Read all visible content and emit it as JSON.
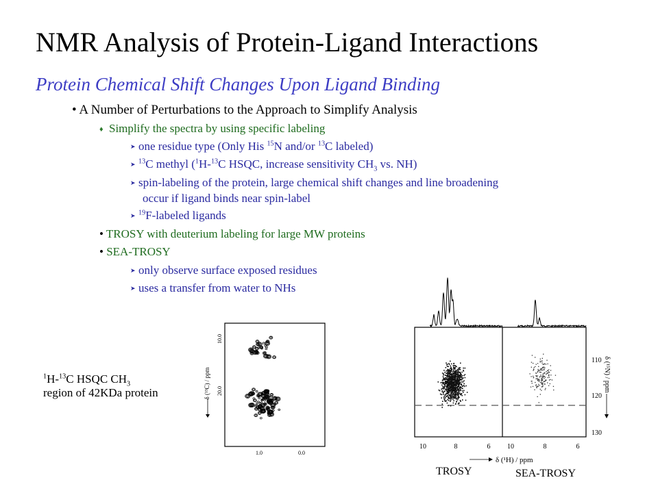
{
  "slide": {
    "title": "NMR Analysis of Protein-Ligand Interactions",
    "subtitle": "Protein Chemical Shift Changes Upon Ligand Binding",
    "bullets": {
      "b1": "A Number of Perturbations to the Approach to Simplify Analysis",
      "b1_1": "Simplify the spectra by using specific labeling",
      "b1_1_1_pre": "one residue type (Only His ",
      "b1_1_1_sup1": "15",
      "b1_1_1_mid": "N and/or ",
      "b1_1_1_sup2": "13",
      "b1_1_1_post": "C labeled)",
      "b1_1_2_sup1": "13",
      "b1_1_2_a": "C methyl (",
      "b1_1_2_sup2": "1",
      "b1_1_2_b": "H-",
      "b1_1_2_sup3": "13",
      "b1_1_2_c": "C HSQC, increase sensitivity CH",
      "b1_1_2_sub": "3",
      "b1_1_2_d": " vs. NH)",
      "b1_1_3_line1": "spin-labeling of the protein, large chemical shift changes and line broadening",
      "b1_1_3_line2": "occur if ligand binds near spin-label",
      "b1_1_4_sup": "19",
      "b1_1_4_text": "F-labeled ligands",
      "b2": "TROSY with deuterium labeling  for large MW proteins",
      "b3": "SEA-TROSY",
      "b3_1": "only observe surface exposed residues",
      "b3_2": "uses a transfer from water to NHs"
    },
    "hsqc_caption": {
      "sup1": "1",
      "a": "H-",
      "sup2": "13",
      "b": "C HSQC CH",
      "sub": "3",
      "line2": "region of 42KDa protein"
    },
    "left_spectrum": {
      "ylabel": "δ (¹³C) / ppm",
      "yticks": [
        "10.0",
        "20.0"
      ],
      "xticks": [
        "1.0",
        "0.0"
      ]
    },
    "right_spectrum": {
      "xlabel": "δ (¹H) / ppm",
      "ylabel": "δ (¹⁵N) / ppm",
      "xticks_left": [
        "10",
        "8",
        "6"
      ],
      "xticks_right": [
        "10",
        "8",
        "6"
      ],
      "yticks": [
        "110",
        "120",
        "130"
      ],
      "label_left": "TROSY",
      "label_right": "SEA-TROSY"
    }
  }
}
